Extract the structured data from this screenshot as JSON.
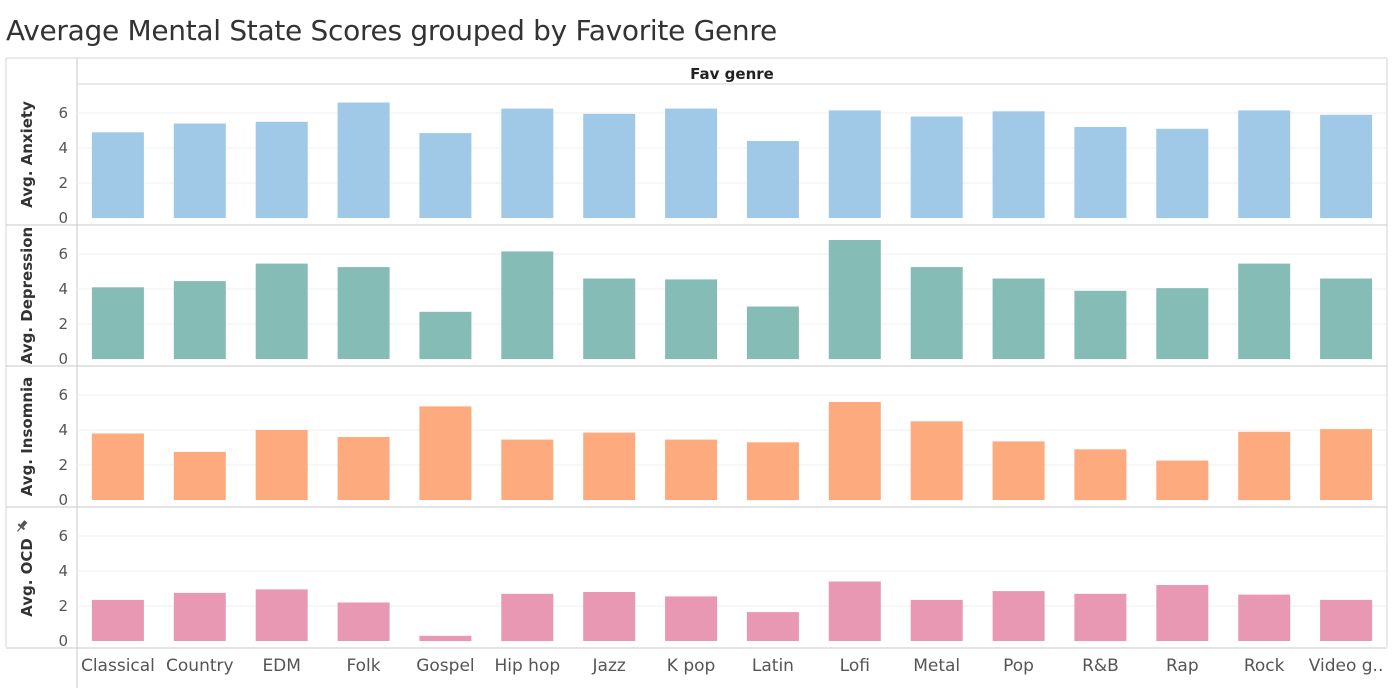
{
  "title": "Average Mental State Scores grouped by Favorite Genre",
  "chart_data": {
    "type": "bar",
    "column_header": "Fav genre",
    "categories": [
      "Classical",
      "Country",
      "EDM",
      "Folk",
      "Gospel",
      "Hip hop",
      "Jazz",
      "K pop",
      "Latin",
      "Lofi",
      "Metal",
      "Pop",
      "R&B",
      "Rap",
      "Rock",
      "Video g.."
    ],
    "yticks": [
      0,
      2,
      4,
      6
    ],
    "grid": true,
    "series": [
      {
        "name": "Avg. Anxiety",
        "color": "#a0c9e8",
        "values": [
          4.9,
          5.4,
          5.5,
          6.6,
          4.85,
          6.25,
          5.95,
          6.25,
          4.4,
          6.15,
          5.8,
          6.1,
          5.2,
          5.1,
          6.15,
          5.9
        ]
      },
      {
        "name": "Avg. Depression",
        "color": "#85bcb5",
        "values": [
          4.1,
          4.45,
          5.45,
          5.25,
          2.7,
          6.15,
          4.6,
          4.55,
          3.0,
          6.8,
          5.25,
          4.6,
          3.9,
          4.05,
          5.45,
          4.6
        ]
      },
      {
        "name": "Avg. Insomnia",
        "color": "#fdaa7e",
        "values": [
          3.8,
          2.75,
          4.0,
          3.6,
          5.35,
          3.45,
          3.85,
          3.45,
          3.3,
          5.6,
          4.5,
          3.35,
          2.9,
          2.25,
          3.9,
          4.05
        ]
      },
      {
        "name": "Avg. OCD",
        "color": "#e898b2",
        "values": [
          2.35,
          2.75,
          2.95,
          2.2,
          0.3,
          2.7,
          2.8,
          2.55,
          1.65,
          3.4,
          2.35,
          2.85,
          2.7,
          3.2,
          2.65,
          2.35
        ]
      }
    ]
  }
}
